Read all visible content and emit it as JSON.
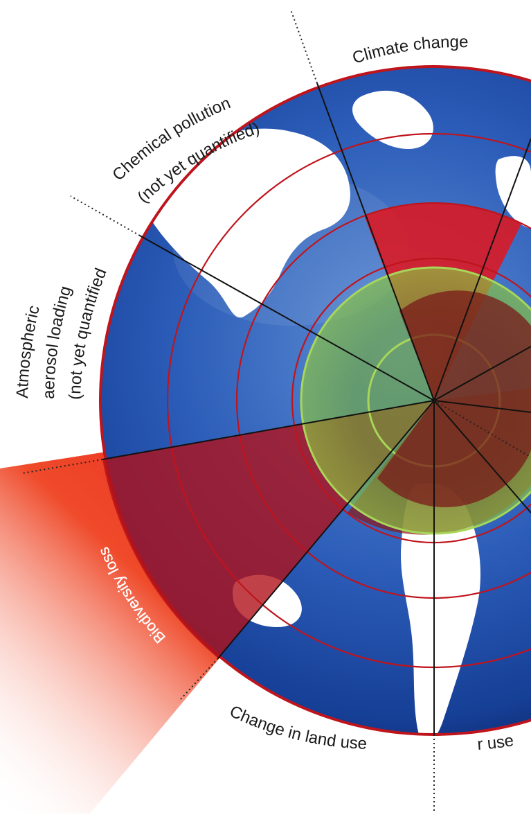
{
  "labels": {
    "climate_change": "Climate change",
    "chemical_pollution_line1": "Chemical pollution",
    "chemical_pollution_line2": "(not yet quantified)",
    "aerosol_line1": "Atmospheric",
    "aerosol_line2": "aerosol loading",
    "aerosol_line3": "(not yet quantified)",
    "biodiversity_loss": "Biodiversity loss",
    "land_use_change": "Change in land use",
    "water_use_partial": "r use"
  },
  "colors": {
    "ocean_dark": "#163f96",
    "ocean_light": "#6f9ad8",
    "land": "#ffffff",
    "safe_zone": "#8cc63f",
    "safe_zone_edge": "#a8d65a",
    "overshoot": "#e3141b",
    "overshoot_dark": "#7a1a1a",
    "ring_line": "#c0141c",
    "sector_line": "#111111"
  }
}
